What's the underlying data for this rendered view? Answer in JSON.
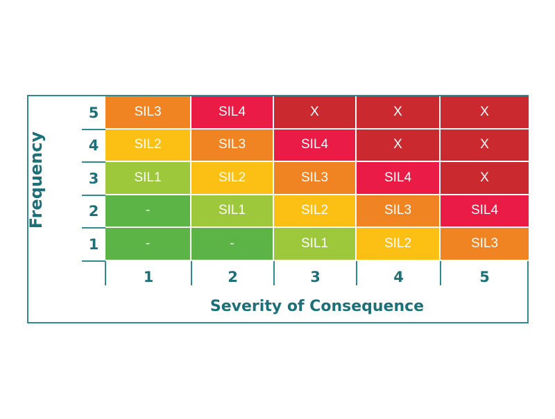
{
  "y_axis": {
    "title": "Frequency",
    "ticks": [
      "5",
      "4",
      "3",
      "2",
      "1"
    ]
  },
  "x_axis": {
    "title": "Severity of Consequence",
    "ticks": [
      "1",
      "2",
      "3",
      "4",
      "5"
    ]
  },
  "matrix": [
    [
      "SIL3",
      "SIL4",
      "X",
      "X",
      "X"
    ],
    [
      "SIL2",
      "SIL3",
      "SIL4",
      "X",
      "X"
    ],
    [
      "SIL1",
      "SIL2",
      "SIL3",
      "SIL4",
      "X"
    ],
    [
      "-",
      "SIL1",
      "SIL2",
      "SIL3",
      "SIL4"
    ],
    [
      "-",
      "-",
      "SIL1",
      "SIL2",
      "SIL3"
    ]
  ],
  "colors": {
    "-": "#5db446",
    "SIL1": "#9ec83b",
    "SIL2": "#fcbf14",
    "SIL3": "#f08423",
    "SIL4": "#ea1c45",
    "X": "#ca2a2f",
    "frame": "#2a8a8f",
    "label": "#1d6f78"
  }
}
